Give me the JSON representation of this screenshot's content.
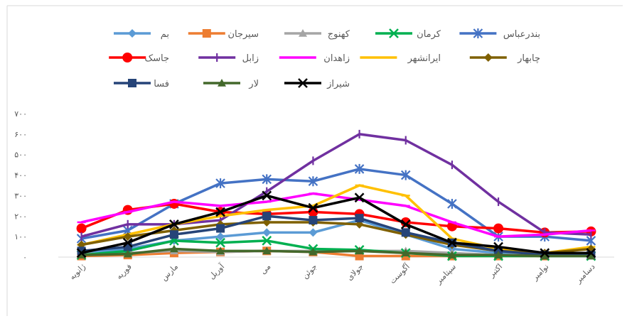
{
  "chart_data": {
    "type": "line",
    "categories": [
      "ژانویه",
      "فوریه",
      "مارس",
      "آوریل",
      "می",
      "جوئن",
      "جولای",
      "آگوست",
      "سپتامبر",
      "اکتبر",
      "نوامبر",
      "دسامبر"
    ],
    "ytick_labels": [
      "۰",
      "۱۰۰",
      "۲۰۰",
      "۳۰۰",
      "۴۰۰",
      "۵۰۰",
      "۶۰۰",
      "۷۰۰"
    ],
    "ylim": [
      0,
      700
    ],
    "grid": false,
    "legend_position": "top",
    "series": [
      {
        "name": "بم",
        "color": "#5b9bd5",
        "marker": "diamond",
        "values": [
          20,
          40,
          80,
          100,
          120,
          120,
          180,
          110,
          40,
          20,
          10,
          15
        ]
      },
      {
        "name": "سیرجان",
        "color": "#ed7d31",
        "marker": "square",
        "values": [
          5,
          10,
          20,
          25,
          30,
          25,
          5,
          5,
          5,
          5,
          5,
          10
        ]
      },
      {
        "name": "کهنوج",
        "color": "#a5a5a5",
        "marker": "triangle",
        "values": [
          15,
          20,
          30,
          25,
          30,
          30,
          30,
          30,
          20,
          10,
          10,
          10
        ]
      },
      {
        "name": "کرمان",
        "color": "#00b050",
        "marker": "x",
        "values": [
          10,
          30,
          80,
          70,
          80,
          40,
          35,
          20,
          5,
          5,
          5,
          5
        ]
      },
      {
        "name": "بندرعباس",
        "color": "#4472c4",
        "marker": "asterisk",
        "values": [
          90,
          130,
          260,
          360,
          380,
          370,
          430,
          400,
          260,
          100,
          100,
          80
        ]
      },
      {
        "name": "جاسک",
        "color": "#ff0000",
        "marker": "circle",
        "values": [
          140,
          230,
          260,
          220,
          210,
          220,
          210,
          170,
          150,
          140,
          120,
          125
        ]
      },
      {
        "name": "زابل",
        "color": "#7030a0",
        "marker": "plus",
        "values": [
          100,
          160,
          160,
          180,
          320,
          470,
          600,
          570,
          450,
          270,
          120,
          110
        ]
      },
      {
        "name": "زاهدان",
        "color": "#ff00ff",
        "marker": "dash",
        "values": [
          170,
          220,
          270,
          250,
          270,
          310,
          280,
          250,
          170,
          100,
          110,
          130
        ]
      },
      {
        "name": "ایرانشهر",
        "color": "#ffc000",
        "marker": "dash",
        "values": [
          60,
          110,
          160,
          200,
          230,
          250,
          350,
          300,
          90,
          40,
          20,
          50
        ]
      },
      {
        "name": "چابهار",
        "color": "#7f6000",
        "marker": "diamond",
        "values": [
          60,
          100,
          130,
          160,
          170,
          170,
          160,
          110,
          60,
          30,
          20,
          40
        ]
      },
      {
        "name": "فسا",
        "color": "#264478",
        "marker": "square",
        "values": [
          30,
          50,
          110,
          140,
          200,
          180,
          190,
          120,
          70,
          30,
          10,
          10
        ]
      },
      {
        "name": "لار",
        "color": "#43682b",
        "marker": "triangle",
        "values": [
          10,
          15,
          40,
          30,
          30,
          25,
          30,
          20,
          10,
          10,
          5,
          5
        ]
      },
      {
        "name": "شیراز",
        "color": "#000000",
        "marker": "x",
        "values": [
          20,
          70,
          160,
          220,
          300,
          240,
          290,
          160,
          70,
          50,
          20,
          20
        ]
      }
    ]
  }
}
